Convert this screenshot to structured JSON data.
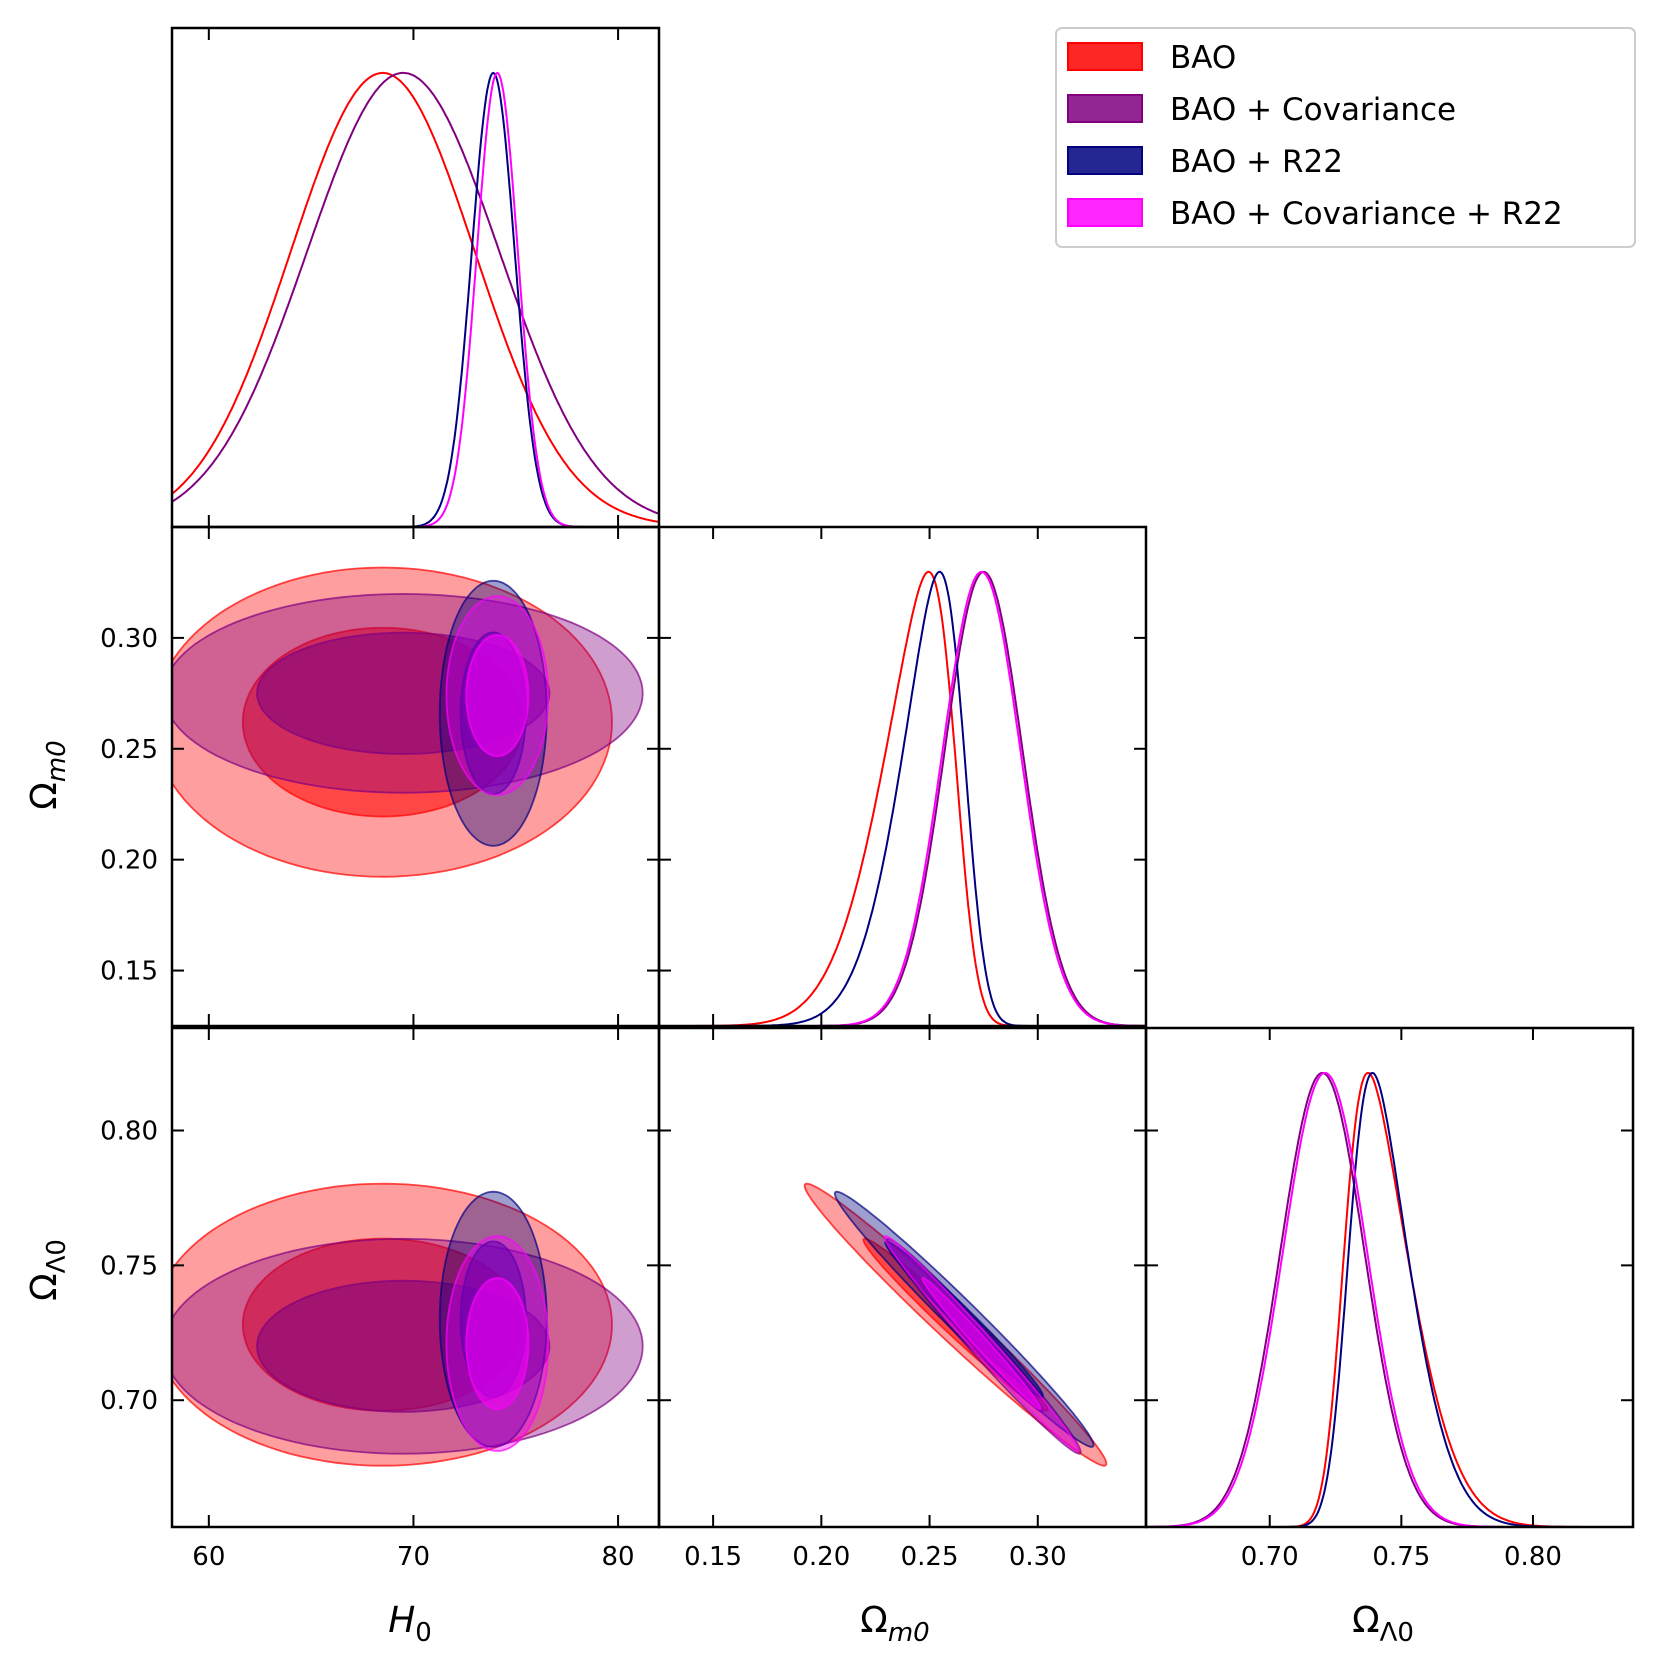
{
  "chart_data": {
    "type": "corner",
    "parameters": [
      "H_0",
      "Ω_m0",
      "Ω_Λ0"
    ],
    "axis_labels": {
      "H0": {
        "main": "H",
        "sub": "0"
      },
      "Om": {
        "main": "Ω",
        "sub": "m0"
      },
      "OL": {
        "main": "Ω",
        "sub": "Λ0"
      }
    },
    "ticks": {
      "H0": [
        "60",
        "70",
        "80"
      ],
      "Om": [
        "0.15",
        "0.20",
        "0.25",
        "0.30"
      ],
      "OL": [
        "0.70",
        "0.75",
        "0.80"
      ]
    },
    "ranges": {
      "H0": [
        58.2,
        82.0
      ],
      "Om": [
        0.125,
        0.35
      ],
      "OL": [
        0.653,
        0.838
      ]
    },
    "legend": [
      {
        "label": "BAO",
        "color": "#ff0000"
      },
      {
        "label": "BAO + Covariance",
        "color": "#800080"
      },
      {
        "label": "BAO + R22",
        "color": "#000080"
      },
      {
        "label": "BAO + Covariance + R22",
        "color": "#ff00ff"
      }
    ],
    "series": [
      {
        "name": "BAO",
        "color": "#ff0000",
        "fill_opacity": 0.4,
        "H0": {
          "mean": 68.5,
          "sigma": 4.5
        },
        "Om": {
          "mean": 0.262,
          "sigma": 0.028,
          "skew": -3.5
        },
        "OL": {
          "mean": 0.728,
          "sigma": 0.021,
          "skew": 3.5
        },
        "corr_H0_Om": 0.0,
        "corr_H0_OL": 0.0,
        "corr_Om_OL": -0.985
      },
      {
        "name": "BAO + Covariance",
        "color": "#800080",
        "fill_opacity": 0.4,
        "H0": {
          "mean": 69.5,
          "sigma": 4.7
        },
        "Om": {
          "mean": 0.275,
          "sigma": 0.018
        },
        "OL": {
          "mean": 0.72,
          "sigma": 0.016
        },
        "corr_H0_Om": 0.0,
        "corr_H0_OL": 0.0,
        "corr_Om_OL": -0.985
      },
      {
        "name": "BAO + R22",
        "color": "#000080",
        "fill_opacity": 0.4,
        "H0": {
          "mean": 73.9,
          "sigma": 1.05
        },
        "Om": {
          "mean": 0.266,
          "sigma": 0.024,
          "skew": -3.0
        },
        "OL": {
          "mean": 0.73,
          "sigma": 0.019,
          "skew": 3.0
        },
        "corr_H0_Om": 0.0,
        "corr_H0_OL": 0.0,
        "corr_Om_OL": -0.985
      },
      {
        "name": "BAO + Covariance + R22",
        "color": "#ff00ff",
        "fill_opacity": 0.4,
        "H0": {
          "mean": 74.1,
          "sigma": 1.0
        },
        "Om": {
          "mean": 0.274,
          "sigma": 0.018
        },
        "OL": {
          "mean": 0.721,
          "sigma": 0.016
        },
        "corr_H0_Om": 0.0,
        "corr_H0_OL": 0.0,
        "corr_Om_OL": -0.99
      }
    ],
    "contour_levels": [
      "68%",
      "95%"
    ]
  }
}
